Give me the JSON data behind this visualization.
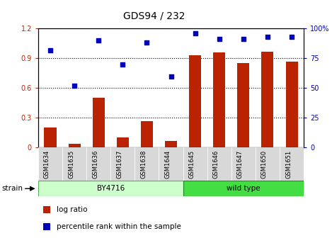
{
  "title": "GDS94 / 232",
  "categories": [
    "GSM1634",
    "GSM1635",
    "GSM1636",
    "GSM1637",
    "GSM1638",
    "GSM1644",
    "GSM1645",
    "GSM1646",
    "GSM1647",
    "GSM1650",
    "GSM1651"
  ],
  "log_ratio": [
    0.2,
    0.04,
    0.5,
    0.1,
    0.27,
    0.07,
    0.93,
    0.96,
    0.85,
    0.97,
    0.87
  ],
  "percentile_rank_pct": [
    82,
    52,
    90,
    70,
    88,
    60,
    96,
    91,
    91,
    93,
    93
  ],
  "bar_color": "#bb2200",
  "dot_color": "#0000bb",
  "ylim_left": [
    0,
    1.2
  ],
  "ylim_right": [
    0,
    100
  ],
  "yticks_left": [
    0,
    0.3,
    0.6,
    0.9,
    1.2
  ],
  "yticks_right": [
    0,
    25,
    50,
    75,
    100
  ],
  "by4716_color": "#ccffcc",
  "by4716_edge": "#55aa55",
  "wildtype_color": "#44dd44",
  "wildtype_edge": "#228822",
  "grid_color": "black",
  "grid_linestyle": "dotted",
  "grid_linewidth": 0.8,
  "title_fontsize": 10,
  "tick_fontsize": 7,
  "bar_width": 0.5,
  "xlim": [
    -0.5,
    10.5
  ]
}
